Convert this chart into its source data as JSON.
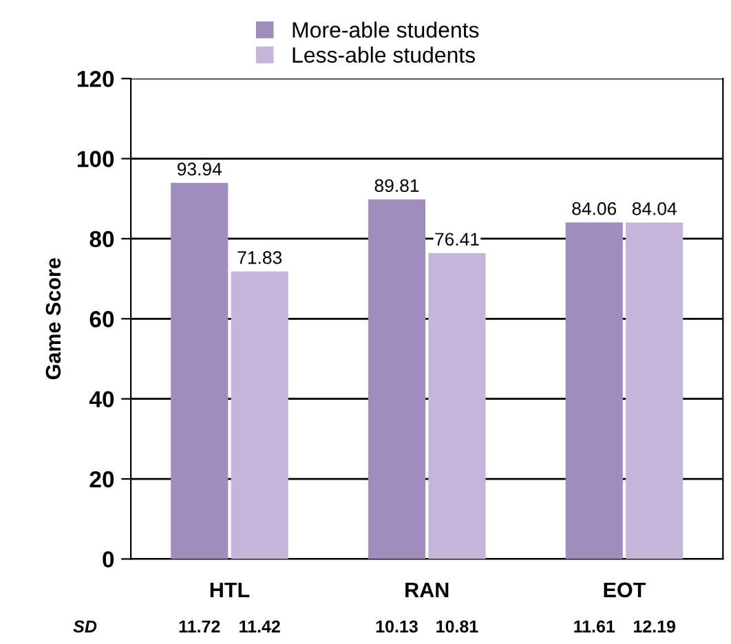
{
  "chart_data": {
    "type": "bar",
    "ylabel": "Game Score",
    "categories": [
      "HTL",
      "RAN",
      "EOT"
    ],
    "series": [
      {
        "name": "More-able students",
        "color": "#a08cbd",
        "values": [
          93.94,
          89.81,
          84.06
        ]
      },
      {
        "name": "Less-able students",
        "color": "#c4b5d9",
        "values": [
          71.83,
          76.41,
          84.04
        ]
      }
    ],
    "ylim": [
      0,
      120
    ],
    "yticks": [
      0,
      20,
      40,
      60,
      80,
      100,
      120
    ],
    "grid": "y",
    "legend": "top",
    "data_labels": true,
    "annotations": [
      "SD",
      "11.72",
      "11.42",
      "10.13",
      "10.81",
      "11.61",
      "12.19"
    ]
  }
}
